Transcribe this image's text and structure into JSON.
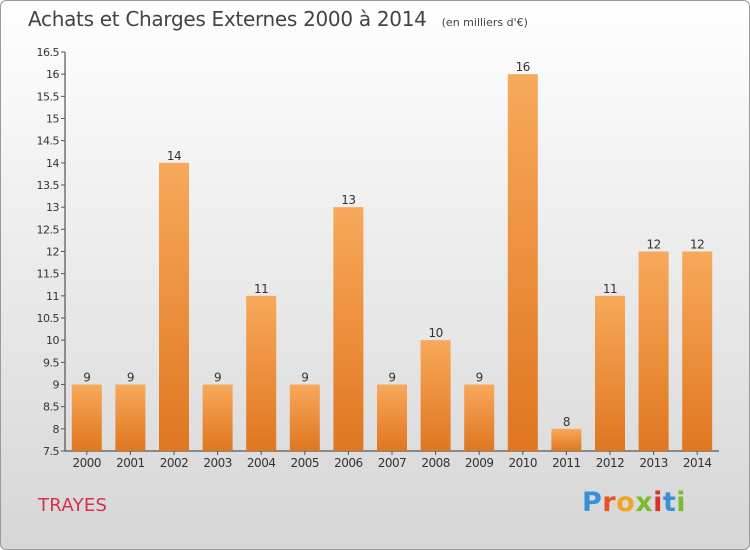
{
  "header": {
    "title": "Achats et Charges Externes 2000 à 2014",
    "subtitle": "(en milliers d'€)"
  },
  "footer": {
    "commune": "TRAYES",
    "brand_letters": [
      "P",
      "r",
      "o",
      "x",
      "i",
      "t",
      "i"
    ],
    "brand_colors": [
      "#3a8fd9",
      "#e8541f",
      "#f2a51e",
      "#7dbb2e",
      "#d9322b",
      "#3a8fd9",
      "#7dbb2e"
    ]
  },
  "colors": {
    "bar_light": "#f7a95a",
    "bar_dark": "#e07620",
    "axis": "#333333",
    "grid_tick": "#555555"
  },
  "chart_data": {
    "type": "bar",
    "title": "Achats et Charges Externes 2000 à 2014",
    "subtitle": "(en milliers d'€)",
    "categories": [
      "2000",
      "2001",
      "2002",
      "2003",
      "2004",
      "2005",
      "2006",
      "2007",
      "2008",
      "2009",
      "2010",
      "2011",
      "2012",
      "2013",
      "2014"
    ],
    "values": [
      9,
      9,
      14,
      9,
      11,
      9,
      13,
      9,
      10,
      9,
      16,
      8,
      11,
      12,
      12
    ],
    "ylim": [
      7.5,
      16.5
    ],
    "ytick_step": 0.5,
    "yticks": [
      "7.5",
      "8",
      "8.5",
      "9",
      "9.5",
      "10",
      "10.5",
      "11",
      "11.5",
      "12",
      "12.5",
      "13",
      "13.5",
      "14",
      "14.5",
      "15",
      "15.5",
      "16",
      "16.5"
    ],
    "xlabel": "",
    "ylabel": "",
    "grid": false,
    "data_labels": true
  }
}
